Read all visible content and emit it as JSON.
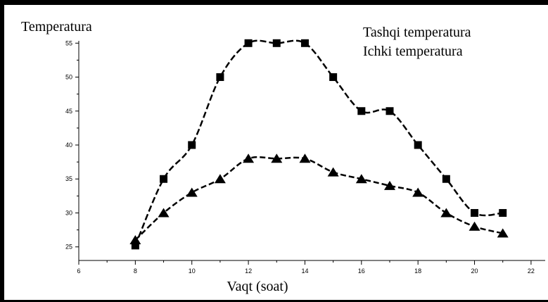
{
  "chart_data": {
    "type": "line",
    "ylabel": "Temperatura",
    "xlabel": "Vaqt (soat)",
    "legend": [
      "Tashqi temperatura",
      "Ichki temperatura"
    ],
    "legend_position": "top-right",
    "xlim": [
      6,
      22.5
    ],
    "ylim": [
      23,
      57
    ],
    "x_ticks": [
      6,
      8,
      10,
      12,
      14,
      16,
      18,
      20,
      22
    ],
    "y_ticks": [
      25,
      30,
      35,
      40,
      45,
      50,
      55
    ],
    "grid": false,
    "series": [
      {
        "marker": "square",
        "color": "#000000",
        "x": [
          8,
          9,
          10,
          11,
          12,
          13,
          14,
          15,
          16,
          17,
          18,
          19,
          20,
          21
        ],
        "values": [
          25.2,
          35,
          40,
          50,
          55,
          55,
          55,
          50,
          45,
          45,
          40,
          35,
          30,
          30
        ]
      },
      {
        "marker": "triangle",
        "color": "#000000",
        "x": [
          8,
          9,
          10,
          11,
          12,
          13,
          14,
          15,
          16,
          17,
          18,
          19,
          20,
          21
        ],
        "values": [
          26,
          30,
          33,
          35,
          38,
          38,
          38,
          36,
          35,
          34,
          33,
          30,
          28,
          27
        ]
      }
    ]
  }
}
